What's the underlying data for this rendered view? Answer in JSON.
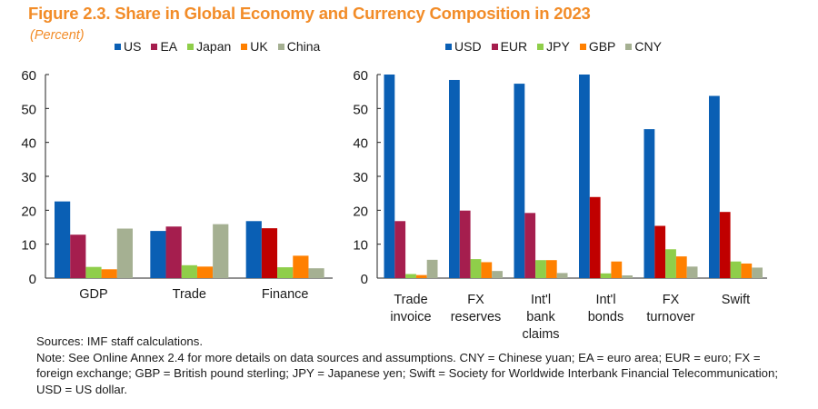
{
  "figure": {
    "title": "Figure 2.3. Share in Global Economy and Currency Composition in 2023",
    "subtitle": "(Percent)"
  },
  "notes": {
    "sources": "Sources: IMF staff calculations.",
    "note": "Note: See Online Annex 2.4  for more details on data sources and assumptions. CNY = Chinese yuan; EA = euro area; EUR = euro; FX = foreign exchange; GBP = British pound sterling; JPY = Japanese yen; Swift = Society for Worldwide Interbank Financial Telecommunication; USD = US dollar."
  },
  "chart_data": [
    {
      "type": "bar",
      "title": "Share in Global Economy",
      "xlabel": "",
      "ylabel": "Percent",
      "ylim": [
        0,
        60
      ],
      "yticks": [
        "0",
        "10",
        "20",
        "30",
        "40",
        "50",
        "60"
      ],
      "grid": false,
      "legend_position": "top",
      "categories": [
        "GDP",
        "Trade",
        "Finance"
      ],
      "series": [
        {
          "name": "US",
          "color": "#0a5fb4",
          "values": [
            22.6,
            13.9,
            16.8
          ]
        },
        {
          "name": "EA",
          "color": "#a51e4e",
          "values": [
            12.8,
            15.2,
            14.7
          ],
          "override_colors": [
            null,
            null,
            "#c00000"
          ]
        },
        {
          "name": "Japan",
          "color": "#8fce4a",
          "values": [
            3.3,
            3.8,
            3.2
          ]
        },
        {
          "name": "UK",
          "color": "#ff8000",
          "values": [
            2.6,
            3.4,
            6.6
          ]
        },
        {
          "name": "China",
          "color": "#a5b092",
          "values": [
            14.6,
            15.9,
            2.9
          ]
        }
      ]
    },
    {
      "type": "bar",
      "title": "Currency Composition",
      "xlabel": "",
      "ylabel": "Percent",
      "ylim": [
        0,
        60
      ],
      "yticks": [
        "0",
        "10",
        "20",
        "30",
        "40",
        "50",
        "60"
      ],
      "grid": false,
      "legend_position": "top",
      "categories": [
        [
          "Trade",
          "invoice"
        ],
        [
          "FX",
          "reserves"
        ],
        [
          "Int'l",
          "bank",
          "claims"
        ],
        [
          "Int'l",
          "bonds"
        ],
        [
          "FX",
          "turnover"
        ],
        [
          "Swift"
        ]
      ],
      "series": [
        {
          "name": "USD",
          "color": "#0a5fb4",
          "values": [
            60.0,
            58.4,
            57.3,
            60.0,
            43.9,
            53.7
          ]
        },
        {
          "name": "EUR",
          "color": "#a51e4e",
          "values": [
            16.8,
            19.9,
            19.2,
            23.9,
            15.4,
            19.5
          ],
          "override_colors": [
            null,
            null,
            null,
            "#c00000",
            "#c00000",
            "#c00000"
          ]
        },
        {
          "name": "JPY",
          "color": "#8fce4a",
          "values": [
            1.2,
            5.6,
            5.3,
            1.4,
            8.5,
            4.9
          ]
        },
        {
          "name": "GBP",
          "color": "#ff8000",
          "values": [
            0.9,
            4.7,
            5.3,
            4.9,
            6.4,
            4.3
          ]
        },
        {
          "name": "CNY",
          "color": "#a5b092",
          "values": [
            5.4,
            2.1,
            1.5,
            0.8,
            3.4,
            3.1
          ]
        }
      ]
    }
  ]
}
